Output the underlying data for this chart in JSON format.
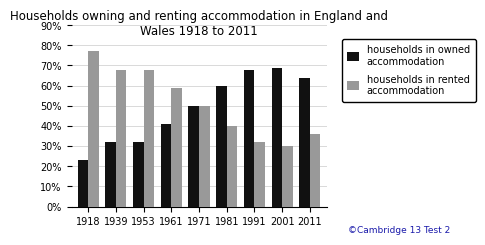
{
  "title": "Households owning and renting accommodation in England and\nWales 1918 to 2011",
  "years": [
    "1918",
    "1939",
    "1953",
    "1961",
    "1971",
    "1981",
    "1991",
    "2001",
    "2011"
  ],
  "owned": [
    23,
    32,
    32,
    41,
    50,
    60,
    68,
    69,
    64
  ],
  "rented": [
    77,
    68,
    68,
    59,
    50,
    40,
    32,
    30,
    36
  ],
  "owned_color": "#111111",
  "rented_color": "#999999",
  "yticks": [
    0,
    10,
    20,
    30,
    40,
    50,
    60,
    70,
    80,
    90
  ],
  "legend_owned": "households in owned\naccommodation",
  "legend_rented": "households in rented\naccommodation",
  "copyright": "©Cambridge 13 Test 2",
  "bar_width": 0.38,
  "title_fontsize": 8.5,
  "tick_fontsize": 7,
  "legend_fontsize": 7,
  "copyright_fontsize": 6.5
}
